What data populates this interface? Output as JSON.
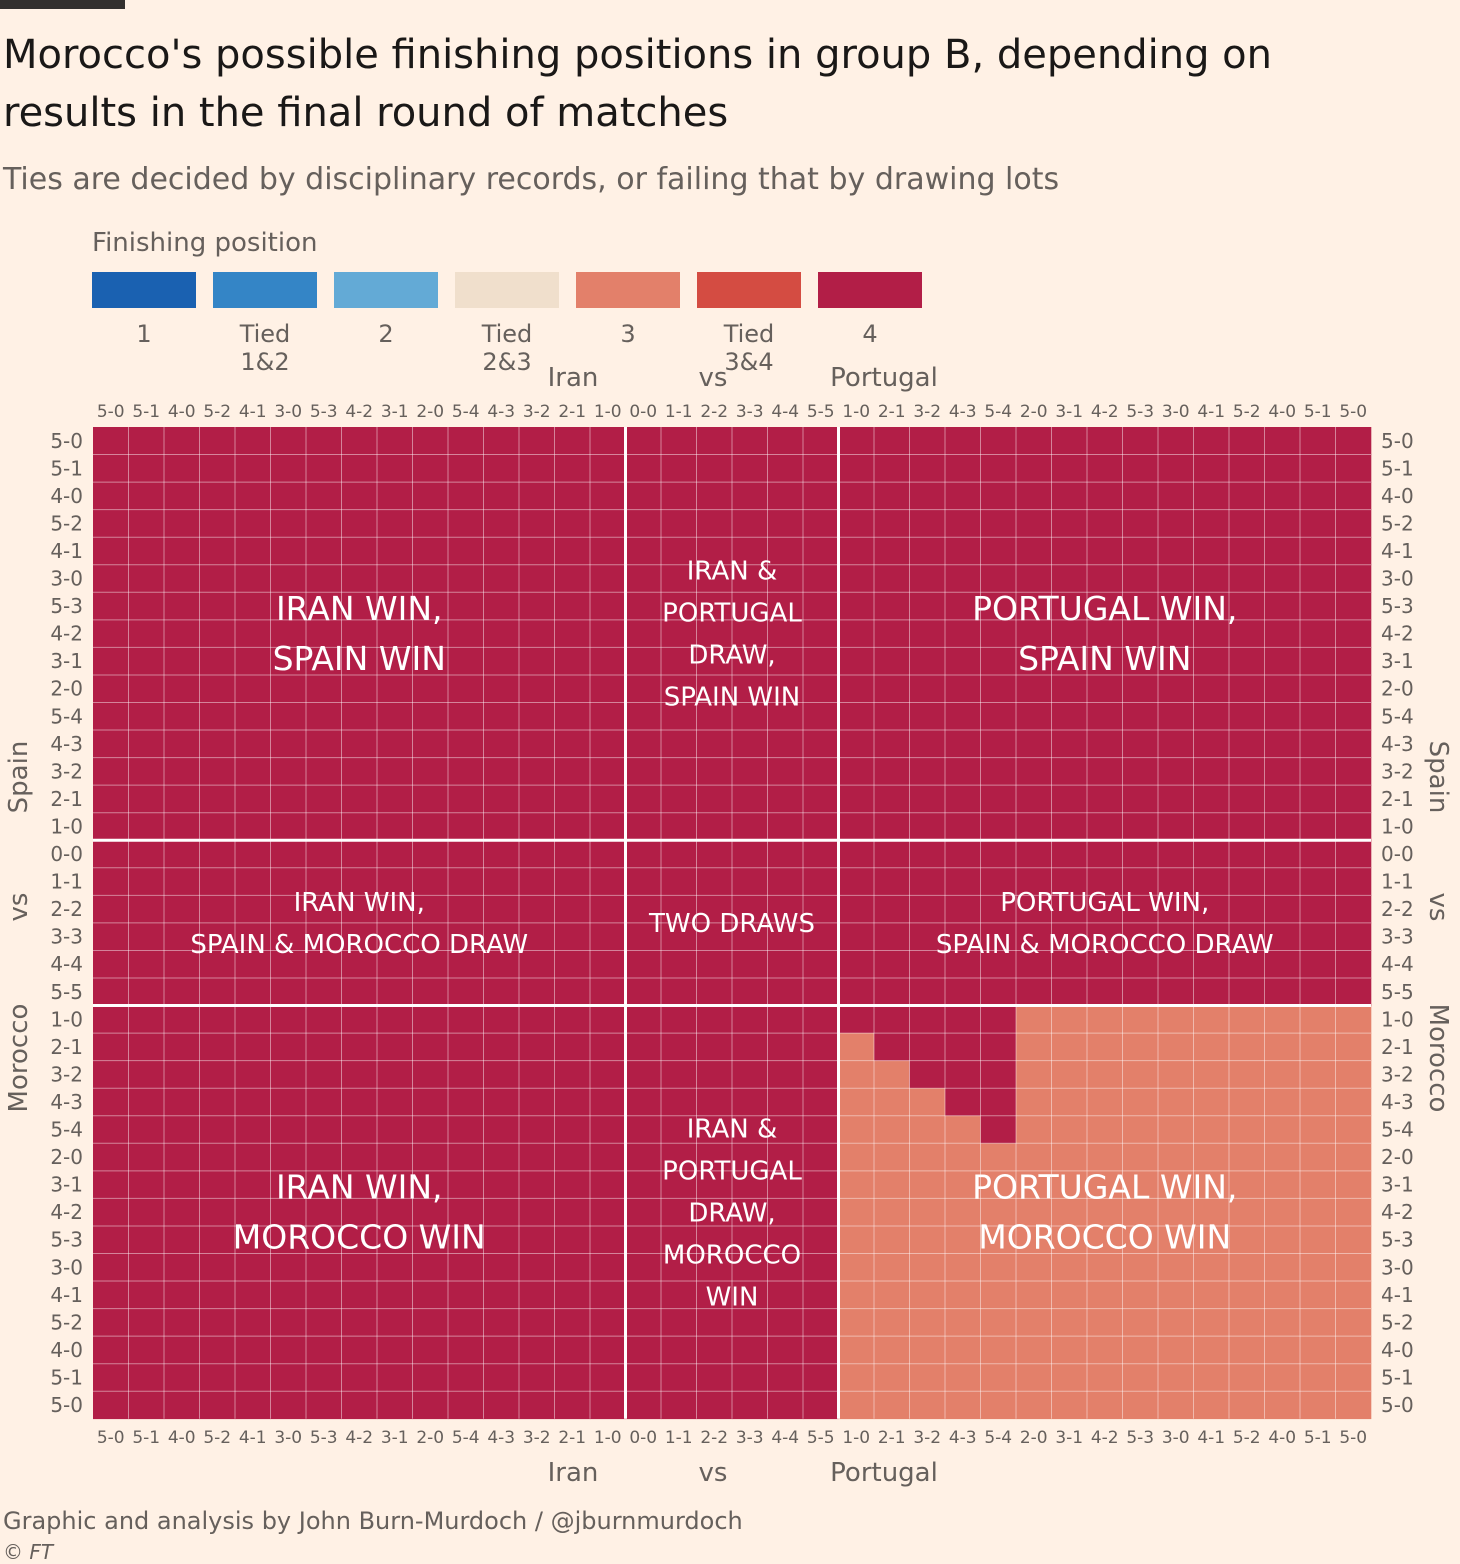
{
  "title": "Morocco's possible finishing positions in group B, depending on results in the final round of matches",
  "subtitle": "Ties are decided by disciplinary records, or failing that by drawing lots",
  "legend": {
    "title": "Finishing position",
    "items": [
      {
        "label": "1",
        "color": "#1a61b1"
      },
      {
        "label": "Tied 1&2",
        "color": "#3485c6"
      },
      {
        "label": "2",
        "color": "#63aad6"
      },
      {
        "label": "Tied 2&3",
        "color": "#f0dfcc"
      },
      {
        "label": "3",
        "color": "#e3806a"
      },
      {
        "label": "Tied 3&4",
        "color": "#d44c42"
      },
      {
        "label": "4",
        "color": "#b21e47"
      }
    ]
  },
  "chart_data": {
    "type": "heatmap",
    "x_axis": {
      "label_left": "Iran",
      "label_mid": "vs",
      "label_right": "Portugal",
      "categories": [
        "5-0",
        "5-1",
        "4-0",
        "5-2",
        "4-1",
        "3-0",
        "5-3",
        "4-2",
        "3-1",
        "2-0",
        "5-4",
        "4-3",
        "3-2",
        "2-1",
        "1-0",
        "0-0",
        "1-1",
        "2-2",
        "3-3",
        "4-4",
        "5-5",
        "1-0",
        "2-1",
        "3-2",
        "4-3",
        "5-4",
        "2-0",
        "3-1",
        "4-2",
        "5-3",
        "3-0",
        "4-1",
        "5-2",
        "4-0",
        "5-1",
        "5-0"
      ]
    },
    "y_axis": {
      "label_top": "Spain",
      "label_mid": "vs",
      "label_bottom": "Morocco",
      "categories": [
        "5-0",
        "5-1",
        "4-0",
        "5-2",
        "4-1",
        "3-0",
        "5-3",
        "4-2",
        "3-1",
        "2-0",
        "5-4",
        "4-3",
        "3-2",
        "2-1",
        "1-0",
        "0-0",
        "1-1",
        "2-2",
        "3-3",
        "4-4",
        "5-5",
        "1-0",
        "2-1",
        "3-2",
        "4-3",
        "5-4",
        "2-0",
        "3-1",
        "4-2",
        "5-3",
        "3-0",
        "4-1",
        "5-2",
        "4-0",
        "5-1",
        "5-0"
      ]
    },
    "default_value": "4",
    "value_regions": [
      {
        "value": "3",
        "x_from": 21,
        "x_to": 35,
        "y_from": 21,
        "y_to": 35,
        "note": "all Portugal win & Morocco win cells except staircase"
      },
      {
        "value": "4",
        "cells": [
          [
            21,
            21
          ],
          [
            22,
            21
          ],
          [
            22,
            22
          ],
          [
            23,
            21
          ],
          [
            23,
            22
          ],
          [
            23,
            23
          ],
          [
            24,
            21
          ],
          [
            24,
            22
          ],
          [
            24,
            23
          ],
          [
            24,
            24
          ],
          [
            25,
            21
          ],
          [
            25,
            22
          ],
          [
            25,
            23
          ],
          [
            25,
            24
          ],
          [
            25,
            25
          ]
        ]
      }
    ],
    "region_labels": [
      {
        "text": "IRAN WIN,\nSPAIN WIN",
        "xr": [
          0,
          14
        ],
        "yr": [
          0,
          14
        ]
      },
      {
        "text": "IRAN &\nPORTUGAL\nDRAW,\nSPAIN WIN",
        "xr": [
          15,
          20
        ],
        "yr": [
          0,
          14
        ]
      },
      {
        "text": "PORTUGAL WIN,\nSPAIN WIN",
        "xr": [
          21,
          35
        ],
        "yr": [
          0,
          14
        ]
      },
      {
        "text": "IRAN WIN,\nSPAIN & MOROCCO DRAW",
        "xr": [
          0,
          14
        ],
        "yr": [
          15,
          20
        ]
      },
      {
        "text": "TWO DRAWS",
        "xr": [
          15,
          20
        ],
        "yr": [
          15,
          20
        ]
      },
      {
        "text": "PORTUGAL WIN,\nSPAIN & MOROCCO DRAW",
        "xr": [
          21,
          35
        ],
        "yr": [
          15,
          20
        ]
      },
      {
        "text": "IRAN WIN,\nMOROCCO WIN",
        "xr": [
          0,
          14
        ],
        "yr": [
          21,
          35
        ]
      },
      {
        "text": "IRAN &\nPORTUGAL\nDRAW,\nMOROCCO\nWIN",
        "xr": [
          15,
          20
        ],
        "yr": [
          21,
          35
        ]
      },
      {
        "text": "PORTUGAL WIN,\nMOROCCO WIN",
        "xr": [
          21,
          35
        ],
        "yr": [
          21,
          35
        ]
      }
    ]
  },
  "footer": {
    "credit": "Graphic and analysis by John Burn-Murdoch / @jburnmurdoch",
    "copyright": "© FT"
  }
}
